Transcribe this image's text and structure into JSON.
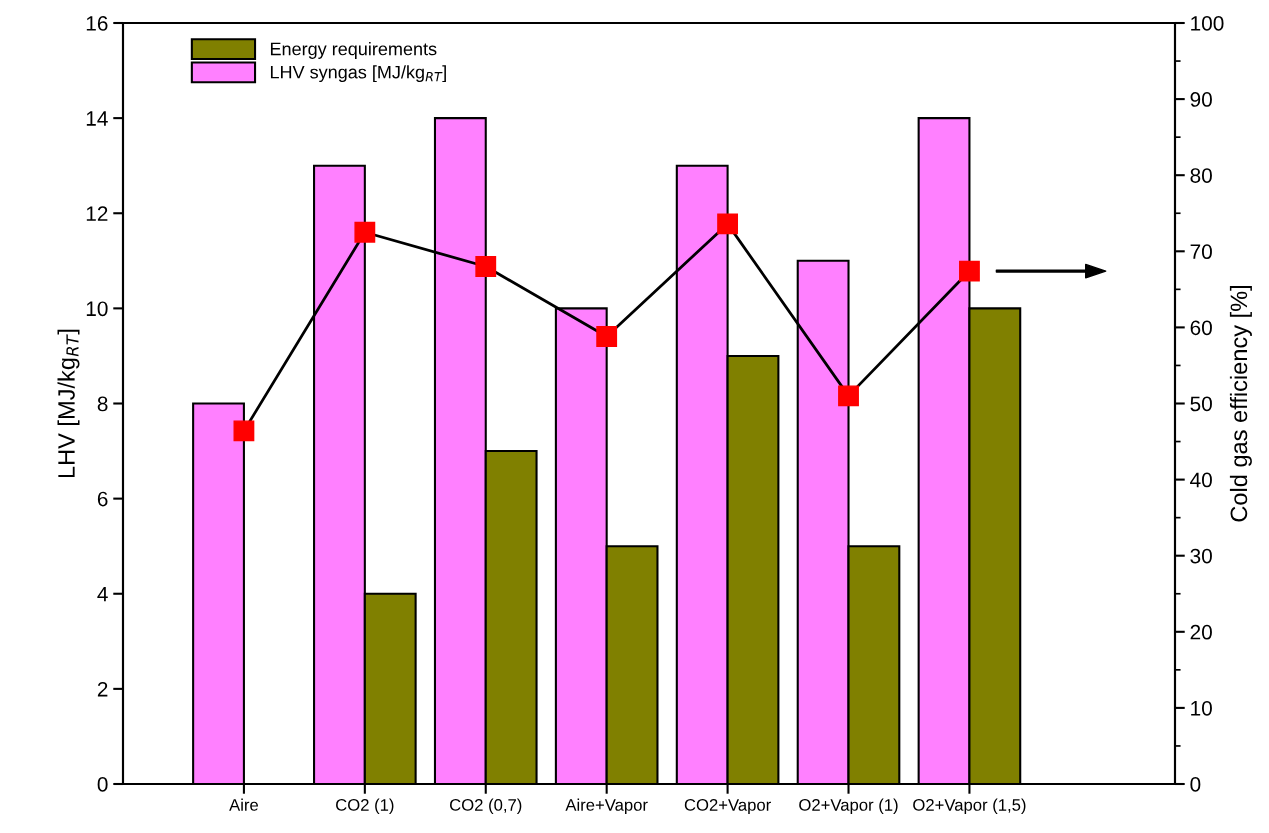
{
  "chart_data": {
    "type": "bar",
    "categories": [
      "Aire",
      "CO2 (1)",
      "CO2 (0,7)",
      "Aire+Vapor",
      "CO2+Vapor",
      "O2+Vapor (1)",
      "O2+Vapor (1,5)"
    ],
    "series": [
      {
        "name": "LHV syngas [MJ/kg$_{RT}$]",
        "color": "#ff80ff",
        "values": [
          8,
          13,
          14,
          10,
          13,
          11,
          14
        ]
      },
      {
        "name": "Energy requirements",
        "color": "#808000",
        "values": [
          null,
          4,
          7,
          5,
          9,
          5,
          10
        ]
      },
      {
        "type": "line",
        "axis": "y2",
        "color": "#ff0000",
        "marker": "square",
        "line_style": "solid",
        "values": [
          46.4,
          72.5,
          68.0,
          58.8,
          73.6,
          51.0,
          67.4
        ]
      }
    ],
    "ylabel": "LHV [MJ/kg$_{RT}$]",
    "y2label": "Cold gas efficiency [%]",
    "ylim": [
      0,
      16
    ],
    "yticks": [
      0,
      2,
      4,
      6,
      8,
      10,
      12,
      14,
      16
    ],
    "y2lim": [
      0,
      100
    ],
    "y2ticks": [
      0,
      10,
      20,
      30,
      40,
      50,
      60,
      70,
      80,
      90,
      100
    ],
    "grid": false,
    "legend": "top left"
  }
}
